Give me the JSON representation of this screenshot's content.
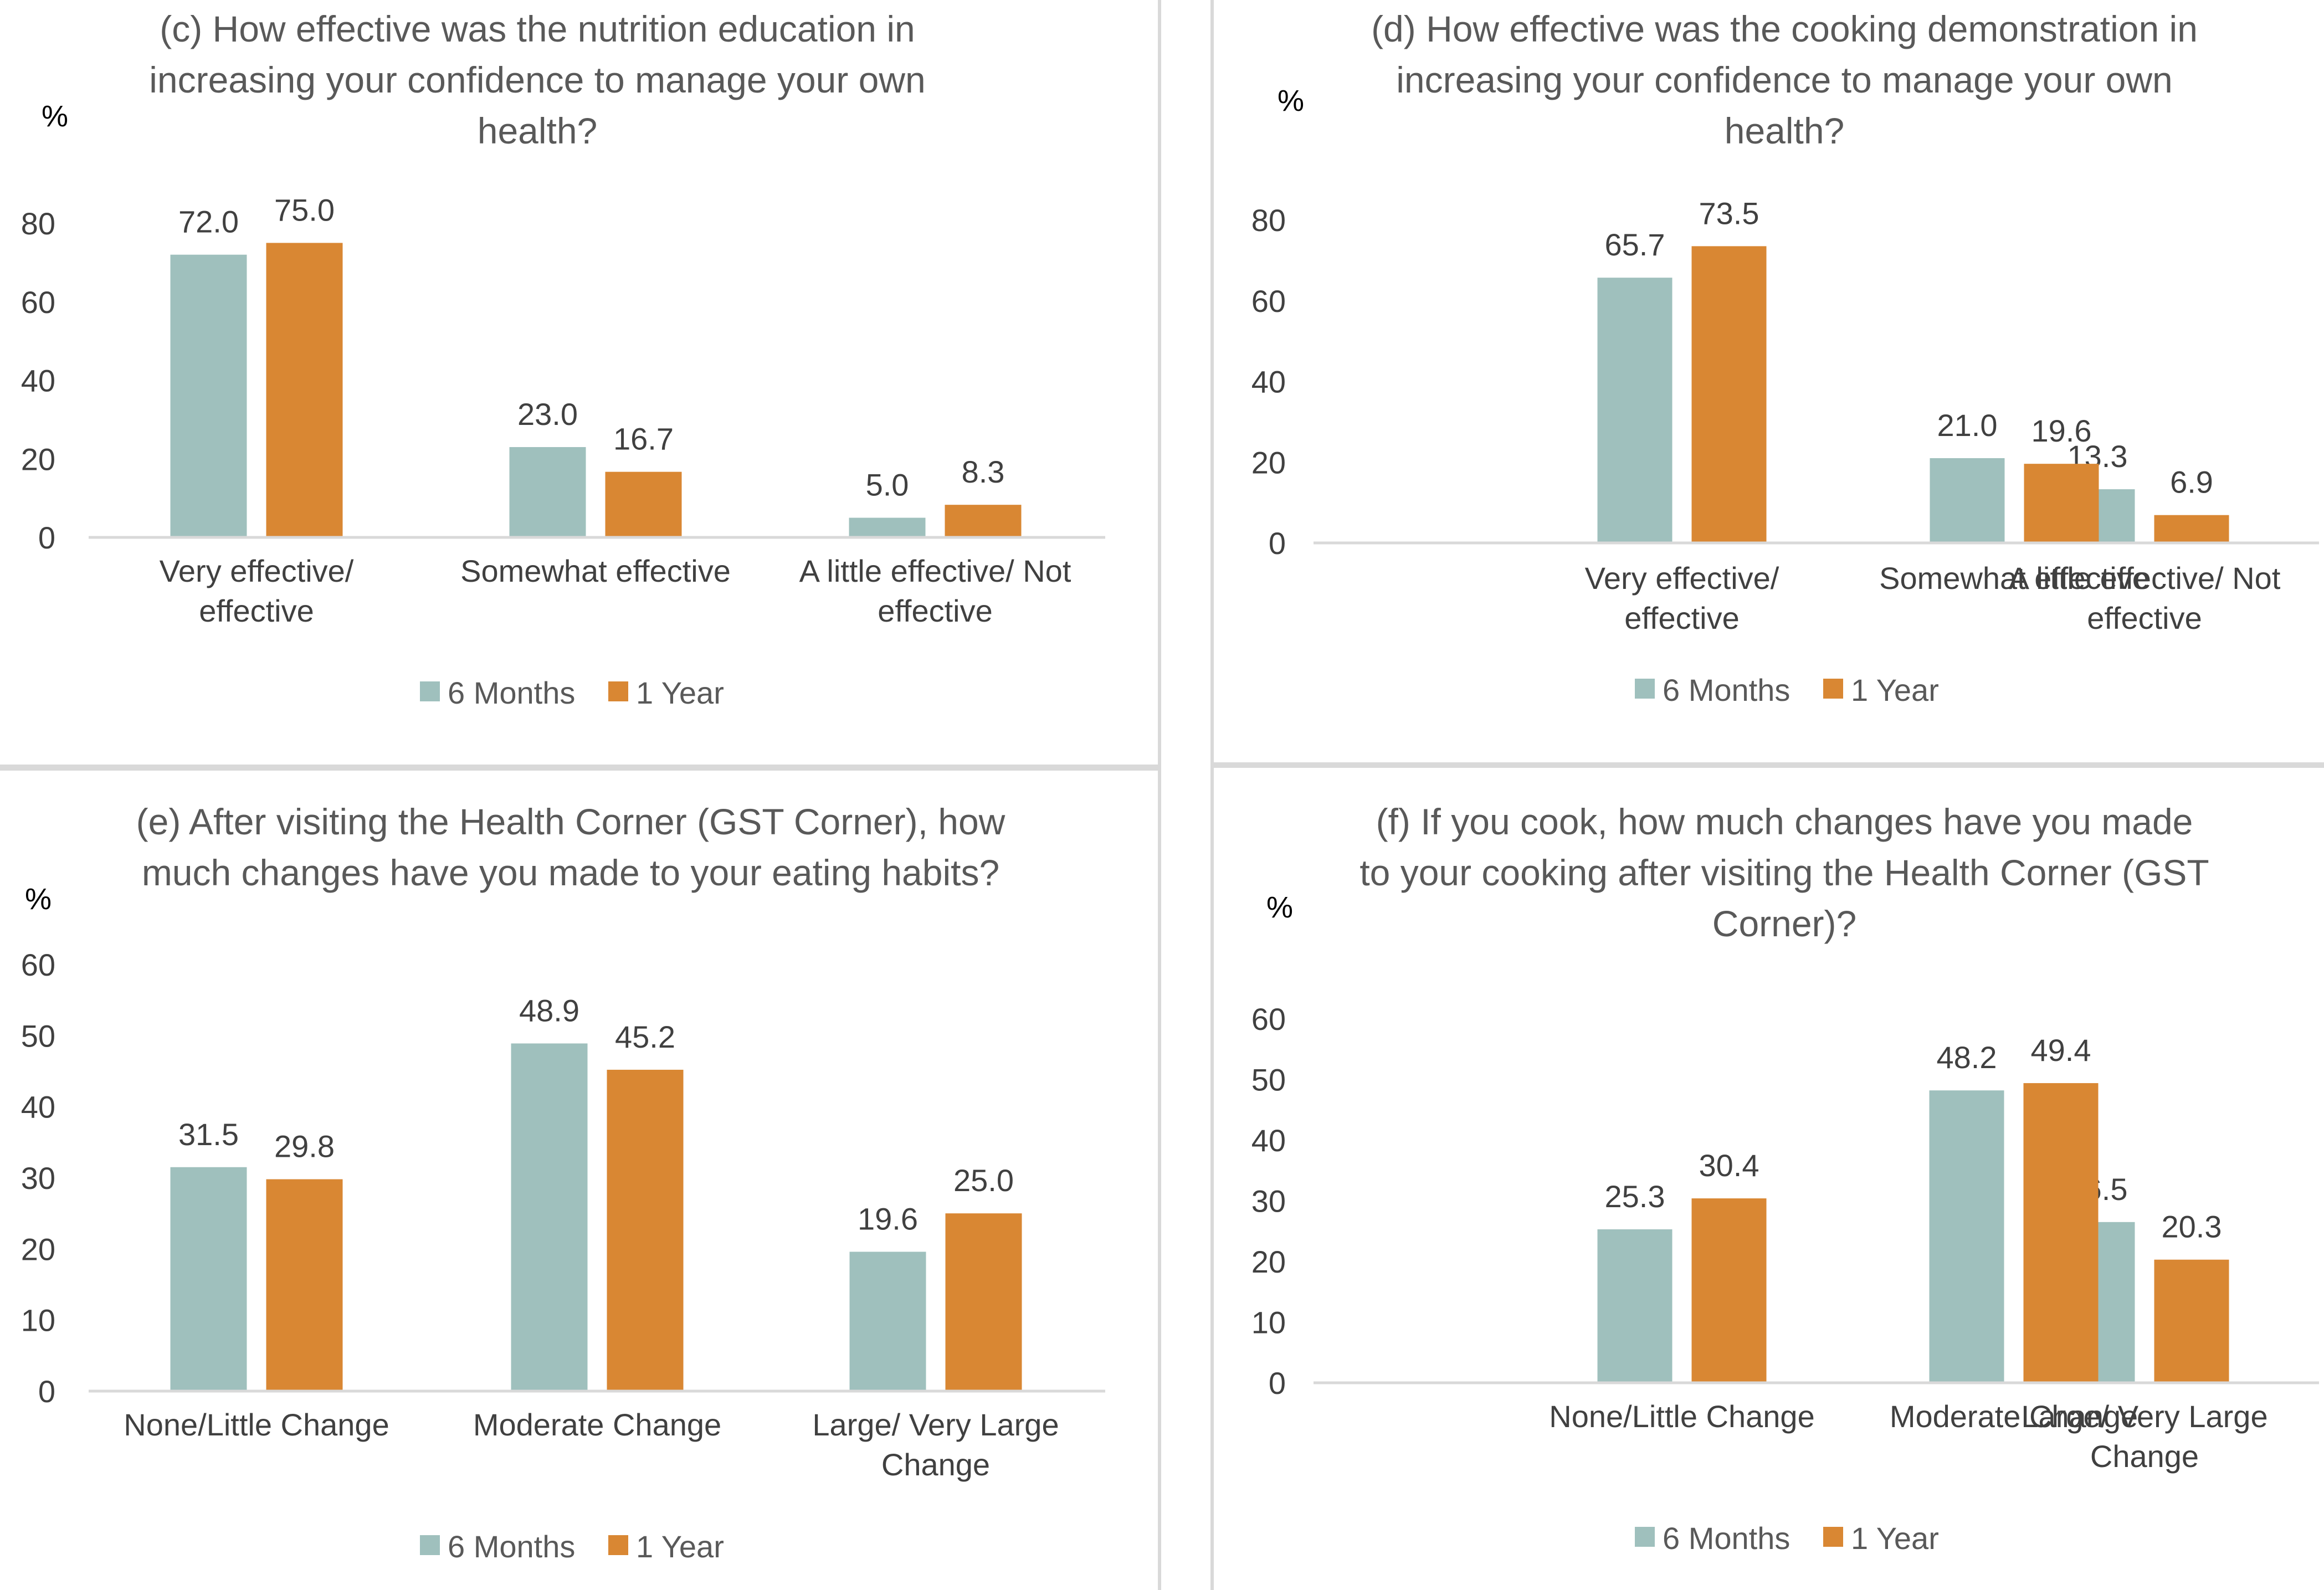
{
  "colors": {
    "six_months": "#9fc0bd",
    "one_year": "#d98733",
    "axis": "#d9d9d9"
  },
  "legend_position": "bottom",
  "chart_data": [
    {
      "id": "c",
      "type": "bar",
      "title": [
        "(c) How effective was the nutrition education in",
        "increasing your confidence to manage your own",
        "health?"
      ],
      "ylabel": "%",
      "ylim": [
        0,
        80
      ],
      "yticks": [
        "0",
        "20",
        "40",
        "60",
        "80"
      ],
      "categories": [
        [
          "Very effective/",
          "effective"
        ],
        [
          "Somewhat effective"
        ],
        [
          "A little effective/ Not",
          "effective"
        ]
      ],
      "series": [
        {
          "name": "6 Months",
          "values": [
            72.0,
            23.0,
            5.0
          ],
          "labels": [
            "72.0",
            "23.0",
            "5.0"
          ]
        },
        {
          "name": "1 Year",
          "values": [
            75.0,
            16.7,
            8.3
          ],
          "labels": [
            "75.0",
            "16.7",
            "8.3"
          ]
        }
      ]
    },
    {
      "id": "d",
      "type": "bar",
      "title": [
        "(d) How effective was the cooking demonstration in",
        "increasing your confidence to manage your own",
        "health?"
      ],
      "ylabel": "%",
      "ylim": [
        0,
        80
      ],
      "yticks": [
        "0",
        "20",
        "40",
        "60",
        "80"
      ],
      "categories": [
        [
          "Very effective/",
          "effective"
        ],
        [
          "Somewhat effective"
        ],
        [
          "A little effective/ Not",
          "effective"
        ]
      ],
      "series": [
        {
          "name": "6 Months",
          "values": [
            65.7,
            21.0,
            13.3
          ],
          "labels": [
            "65.7",
            "21.0",
            "13.3"
          ]
        },
        {
          "name": "1 Year",
          "values": [
            73.5,
            19.6,
            6.9
          ],
          "labels": [
            "73.5",
            "19.6",
            "6.9"
          ]
        }
      ]
    },
    {
      "id": "e",
      "type": "bar",
      "title": [
        "(e) After visiting the Health Corner (GST Corner), how",
        "much changes have you made to your eating habits?"
      ],
      "ylabel": "%",
      "ylim": [
        0,
        60
      ],
      "yticks": [
        "0",
        "10",
        "20",
        "30",
        "40",
        "50",
        "60"
      ],
      "categories": [
        [
          "None/Little Change"
        ],
        [
          "Moderate Change"
        ],
        [
          "Large/ Very Large",
          "Change"
        ]
      ],
      "series": [
        {
          "name": "6 Months",
          "values": [
            31.5,
            48.9,
            19.6
          ],
          "labels": [
            "31.5",
            "48.9",
            "19.6"
          ]
        },
        {
          "name": "1 Year",
          "values": [
            29.8,
            45.2,
            25.0
          ],
          "labels": [
            "29.8",
            "45.2",
            "25.0"
          ]
        }
      ]
    },
    {
      "id": "f",
      "type": "bar",
      "title": [
        "(f) If you cook, how much changes have you made",
        "to your cooking after visiting the Health Corner (GST",
        "Corner)?"
      ],
      "ylabel": "%",
      "ylim": [
        0,
        60
      ],
      "yticks": [
        "0",
        "10",
        "20",
        "30",
        "40",
        "50",
        "60"
      ],
      "categories": [
        [
          "None/Little Change"
        ],
        [
          "Moderate Change"
        ],
        [
          "Large/ Very Large",
          "Change"
        ]
      ],
      "series": [
        {
          "name": "6 Months",
          "values": [
            25.3,
            48.2,
            26.5
          ],
          "labels": [
            "25.3",
            "48.2",
            "26.5"
          ]
        },
        {
          "name": "1 Year",
          "values": [
            30.4,
            49.4,
            20.3
          ],
          "labels": [
            "30.4",
            "49.4",
            "20.3"
          ]
        }
      ]
    }
  ]
}
